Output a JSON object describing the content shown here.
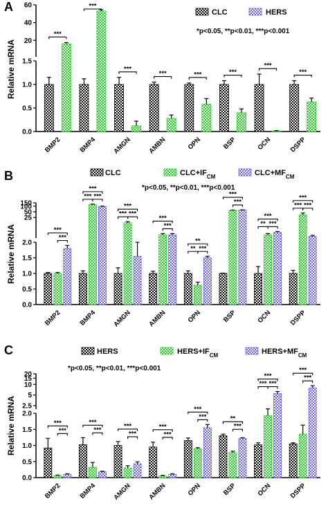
{
  "colors": {
    "black": "#000000",
    "green": "#1fd01f",
    "blue": "#6b63f0"
  },
  "chart_data": [
    {
      "panel": "A",
      "type": "bar",
      "ylabel": "Relative mRNA",
      "categories": [
        "BMP2",
        "BMP4",
        "AMGN",
        "AMBN",
        "OPN",
        "BSP",
        "OCN",
        "DSPP"
      ],
      "y_segments": [
        {
          "range": [
            0,
            1.5
          ],
          "ticks": [
            "0.0",
            "0.5",
            "1.0",
            "1.5"
          ]
        },
        {
          "range": [
            1.5,
            60
          ],
          "ticks": [
            "20",
            "40",
            "60"
          ]
        }
      ],
      "legend": {
        "placement": "top-right",
        "entries": [
          "CLC",
          "HERS"
        ]
      },
      "pvalue_note": "*p<0.05, **p<0.01, ***p<0.001",
      "series": [
        {
          "name": "CLC",
          "values": [
            1.0,
            1.0,
            1.0,
            1.0,
            1.0,
            1.0,
            1.0,
            1.0
          ],
          "errors": [
            0.15,
            0.12,
            0.15,
            0.05,
            0.03,
            0.08,
            0.22,
            0.08
          ]
        },
        {
          "name": "HERS",
          "values": [
            16,
            53,
            0.12,
            0.28,
            0.58,
            0.4,
            0.01,
            0.63
          ],
          "errors": [
            1.5,
            1.5,
            0.1,
            0.07,
            0.12,
            0.08,
            0.01,
            0.08
          ]
        }
      ],
      "significance": [
        {
          "category": "BMP2",
          "label": "***"
        },
        {
          "category": "BMP4",
          "label": "***"
        },
        {
          "category": "AMGN",
          "label": "***"
        },
        {
          "category": "AMBN",
          "label": "***"
        },
        {
          "category": "OPN",
          "label": "***"
        },
        {
          "category": "BSP",
          "label": "***"
        },
        {
          "category": "OCN",
          "label": "***"
        },
        {
          "category": "DSPP",
          "label": "***"
        }
      ]
    },
    {
      "panel": "B",
      "type": "bar",
      "ylabel": "Relative mRNA",
      "categories": [
        "BMP2",
        "BMP4",
        "AMGN",
        "AMBN",
        "OPN",
        "BSP",
        "OCN",
        "DSPP"
      ],
      "y_segments": [
        {
          "range": [
            0,
            2
          ],
          "ticks": [
            "0.0",
            "0.5",
            "1.0",
            "1.5",
            "2.0"
          ]
        },
        {
          "range": [
            2,
            150
          ],
          "ticks": [
            "25",
            "50",
            "100",
            "150"
          ]
        }
      ],
      "legend": {
        "placement": "top",
        "entries": [
          "CLC",
          "CLC+IF",
          "CLC+MF"
        ],
        "subscript": "CM"
      },
      "pvalue_note": "*p<0.05, **p<0.01, ***p<0.001",
      "series": [
        {
          "name": "CLC",
          "values": [
            1.0,
            1.0,
            1.0,
            1.0,
            1.0,
            1.0,
            1.0,
            1.0
          ],
          "errors": [
            0.03,
            0.08,
            0.18,
            0.07,
            0.08,
            0.01,
            0.22,
            0.1
          ]
        },
        {
          "name": "CLC+IF",
          "values": [
            1.0,
            120,
            13,
            3,
            0.62,
            60,
            3,
            35
          ],
          "errors": [
            0.03,
            8,
            2,
            0.5,
            0.1,
            2,
            0.5,
            8
          ]
        },
        {
          "name": "CLC+MF",
          "values": [
            1.8,
            95,
            1.55,
            3,
            1.5,
            62,
            4,
            2.5
          ],
          "errors": [
            0.1,
            5,
            0.45,
            0.5,
            0.05,
            2,
            0.5,
            0.3
          ]
        }
      ],
      "significance": [
        {
          "category": "BMP2",
          "labels": [
            "***",
            "***"
          ]
        },
        {
          "category": "BMP4",
          "labels": [
            "***",
            "***",
            "***"
          ]
        },
        {
          "category": "AMGN",
          "labels": [
            "***",
            "***",
            "***"
          ]
        },
        {
          "category": "AMBN",
          "labels": [
            "***",
            "***"
          ]
        },
        {
          "category": "OPN",
          "labels": [
            "**",
            "**",
            "***"
          ]
        },
        {
          "category": "BSP",
          "labels": [
            "***",
            "***"
          ]
        },
        {
          "category": "OCN",
          "labels": [
            "***",
            "**",
            "***"
          ]
        },
        {
          "category": "DSPP",
          "labels": [
            "***",
            "***",
            "***"
          ]
        }
      ]
    },
    {
      "panel": "C",
      "type": "bar",
      "ylabel": "Relative mRNA",
      "categories": [
        "BMP2",
        "BMP4",
        "AMGN",
        "AMBN",
        "OPN",
        "BSP",
        "OCN",
        "DSPP"
      ],
      "y_segments": [
        {
          "range": [
            0,
            2
          ],
          "ticks": [
            "0.0",
            "0.5",
            "1.0",
            "1.5",
            "2.0"
          ]
        },
        {
          "range": [
            2,
            20
          ],
          "ticks": [
            "2.5",
            "5",
            "10",
            "15",
            "20"
          ]
        }
      ],
      "legend": {
        "placement": "top",
        "entries": [
          "HERS",
          "HERS+IF",
          "HERS+MF"
        ],
        "subscript": "CM"
      },
      "pvalue_note": "*p<0.05, **p<0.01, ***p<0.001",
      "series": [
        {
          "name": "HERS",
          "values": [
            0.92,
            1.02,
            1.0,
            0.95,
            1.15,
            1.3,
            1.02,
            1.05
          ],
          "errors": [
            0.3,
            0.22,
            0.12,
            0.15,
            0.08,
            0.05,
            0.06,
            0.03
          ]
        },
        {
          "name": "HERS+IF",
          "values": [
            0.06,
            0.32,
            0.3,
            0.05,
            0.9,
            0.78,
            1.93,
            1.35
          ],
          "errors": [
            0.02,
            0.15,
            0.07,
            0.02,
            0.03,
            0.04,
            0.1,
            0.28
          ]
        },
        {
          "name": "HERS+MF",
          "values": [
            0.1,
            0.18,
            0.43,
            0.1,
            1.55,
            1.22,
            5.5,
            8
          ],
          "errors": [
            0.02,
            0.02,
            0.06,
            0.02,
            0.1,
            0.02,
            0.8,
            1.2
          ]
        }
      ],
      "significance": [
        {
          "category": "BMP2",
          "labels": [
            "***",
            "***"
          ]
        },
        {
          "category": "BMP4",
          "labels": [
            "***",
            "***"
          ]
        },
        {
          "category": "AMGN",
          "labels": [
            "***",
            "***"
          ]
        },
        {
          "category": "AMBN",
          "labels": [
            "***",
            "***"
          ]
        },
        {
          "category": "OPN",
          "labels": [
            "***",
            "***"
          ]
        },
        {
          "category": "BSP",
          "labels": [
            "**",
            "***"
          ]
        },
        {
          "category": "OCN",
          "labels": [
            "***",
            "***",
            "***"
          ]
        },
        {
          "category": "DSPP",
          "labels": [
            "***",
            "***"
          ]
        }
      ]
    }
  ]
}
